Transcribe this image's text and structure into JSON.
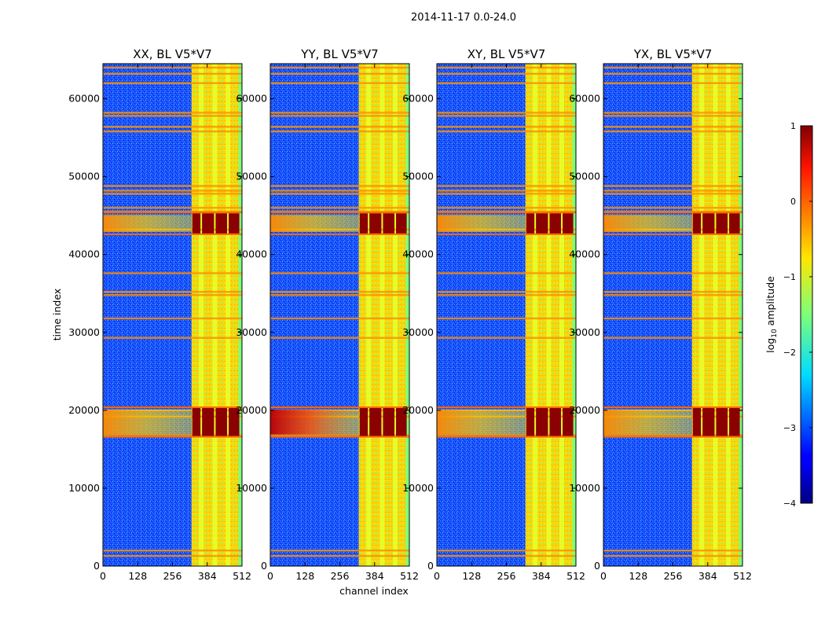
{
  "chart_data": {
    "type": "heatmap",
    "suptitle": "2014-11-17 0.0-24.0",
    "xlabel": "channel index",
    "ylabel": "time index",
    "xlim": [
      0,
      512
    ],
    "ylim": [
      0,
      64500
    ],
    "xticks": [
      0,
      128,
      256,
      384,
      512
    ],
    "yticks": [
      0,
      10000,
      20000,
      30000,
      40000,
      50000,
      60000
    ],
    "colormap": "jet",
    "colorbar": {
      "label_prefix": "log",
      "label_sub": "10",
      "label_suffix": " amplitude",
      "range": [
        -4,
        1
      ],
      "ticks": [
        1,
        0,
        -1,
        -2,
        -3,
        -4
      ]
    },
    "panels": [
      {
        "title": "XX, BL V5*V7"
      },
      {
        "title": "YY, BL V5*V7"
      },
      {
        "title": "XY, BL V5*V7"
      },
      {
        "title": "YX, BL V5*V7"
      }
    ],
    "rfi_channel_bands": [
      [
        326,
        505
      ]
    ],
    "bright_channel_lines": [
      362,
      412,
      460
    ],
    "bright_time_bands": [
      [
        16500,
        20500
      ],
      [
        42500,
        45500
      ]
    ],
    "time_lines": [
      1300,
      2000,
      16800,
      19200,
      20000,
      29300,
      31800,
      34800,
      35200,
      37600,
      43200,
      45500,
      46000,
      47800,
      48200,
      48800,
      55800,
      56400,
      57800,
      58200,
      62000,
      63200,
      64000
    ]
  }
}
